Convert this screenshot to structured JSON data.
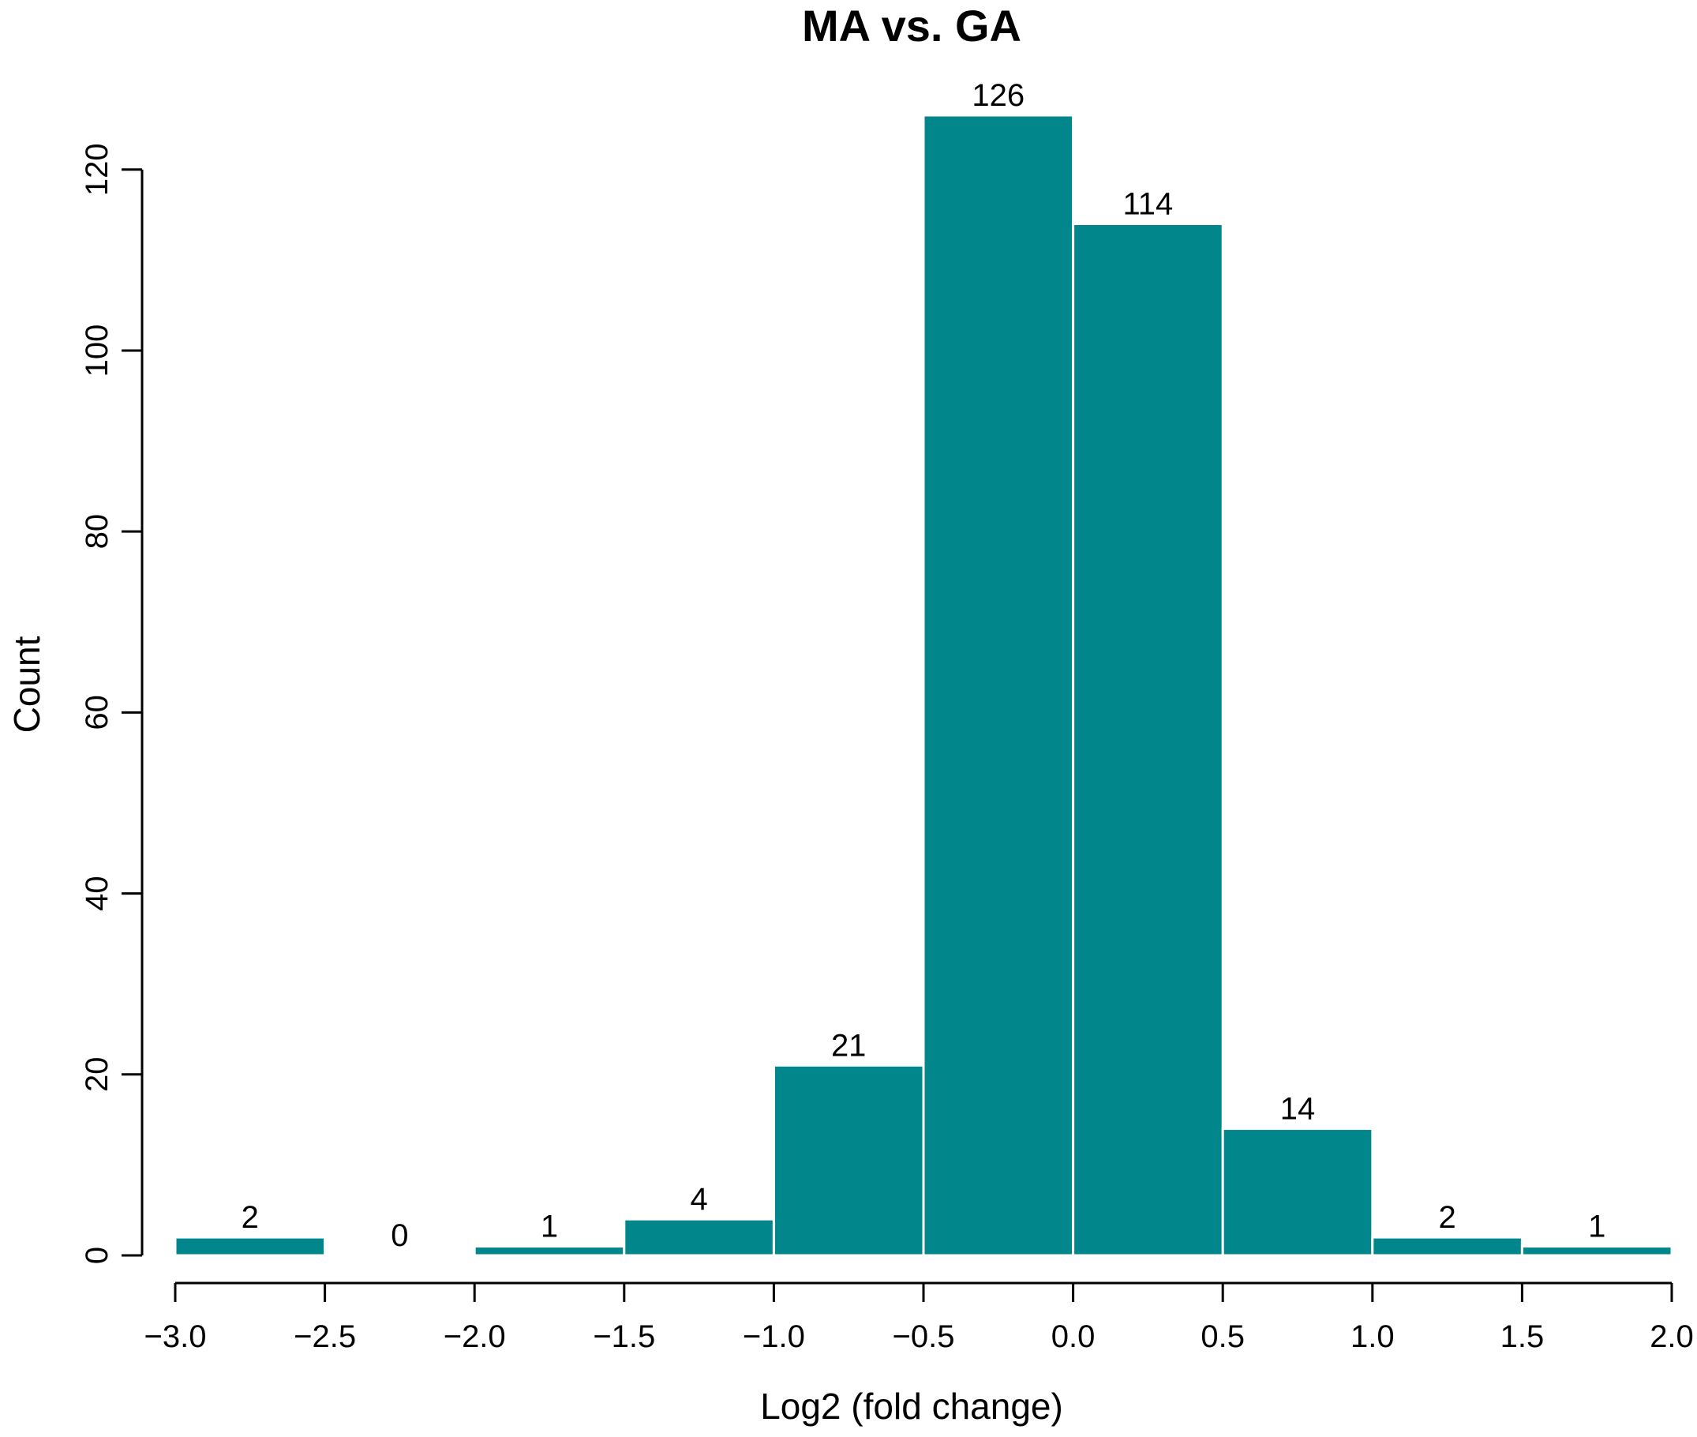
{
  "chart_data": {
    "type": "bar",
    "title": "MA vs. GA",
    "xlabel": "Log2 (fold change)",
    "ylabel": "Count",
    "bin_edges": [
      -3.0,
      -2.5,
      -2.0,
      -1.5,
      -1.0,
      -0.5,
      0.0,
      0.5,
      1.0,
      1.5,
      2.0
    ],
    "values": [
      2,
      0,
      1,
      4,
      21,
      126,
      114,
      14,
      2,
      1
    ],
    "data_labels": [
      "2",
      "0",
      "1",
      "4",
      "21",
      "126",
      "114",
      "14",
      "2",
      "1"
    ],
    "xlim": [
      -3.0,
      2.0
    ],
    "ylim": [
      0,
      126
    ],
    "x_ticks": [
      -3.0,
      -2.5,
      -2.0,
      -1.5,
      -1.0,
      -0.5,
      0.0,
      0.5,
      1.0,
      1.5,
      2.0
    ],
    "x_tick_labels": [
      "−3.0",
      "−2.5",
      "−2.0",
      "−1.5",
      "−1.0",
      "−0.5",
      "0.0",
      "0.5",
      "1.0",
      "1.5",
      "2.0"
    ],
    "y_ticks": [
      0,
      20,
      40,
      60,
      80,
      100,
      120
    ],
    "y_tick_labels": [
      "0",
      "20",
      "40",
      "60",
      "80",
      "100",
      "120"
    ],
    "bar_color": "#00868B",
    "bar_edge_color": "#FFFFFF",
    "grid": false,
    "legend": "none"
  }
}
